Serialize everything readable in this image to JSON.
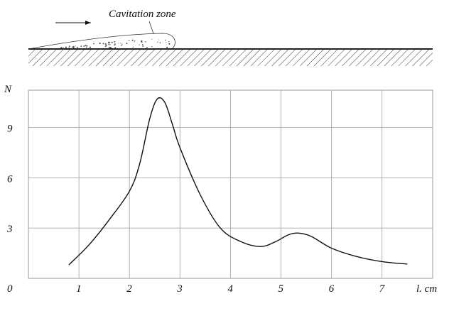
{
  "schematic": {
    "label": "Cavitation zone"
  },
  "chart_data": {
    "type": "line",
    "xlabel": "l. cm",
    "ylabel": "N",
    "xlim": [
      0,
      8
    ],
    "ylim": [
      0,
      12
    ],
    "x_ticks": [
      0,
      1,
      2,
      3,
      4,
      5,
      6,
      7
    ],
    "y_ticks": [
      3,
      6,
      9
    ],
    "grid": true,
    "series": [
      {
        "x": [
          0.8,
          1.2,
          1.6,
          2.0,
          2.2,
          2.4,
          2.55,
          2.7,
          2.85,
          3.0,
          3.4,
          3.8,
          4.2,
          4.6,
          4.9,
          5.15,
          5.35,
          5.6,
          6.0,
          6.5,
          7.0,
          7.5
        ],
        "y": [
          0.8,
          2.0,
          3.5,
          5.2,
          6.8,
          9.5,
          10.7,
          10.5,
          9.2,
          7.8,
          5.0,
          3.0,
          2.2,
          1.9,
          2.2,
          2.6,
          2.7,
          2.5,
          1.8,
          1.3,
          1.0,
          0.85
        ]
      }
    ]
  }
}
